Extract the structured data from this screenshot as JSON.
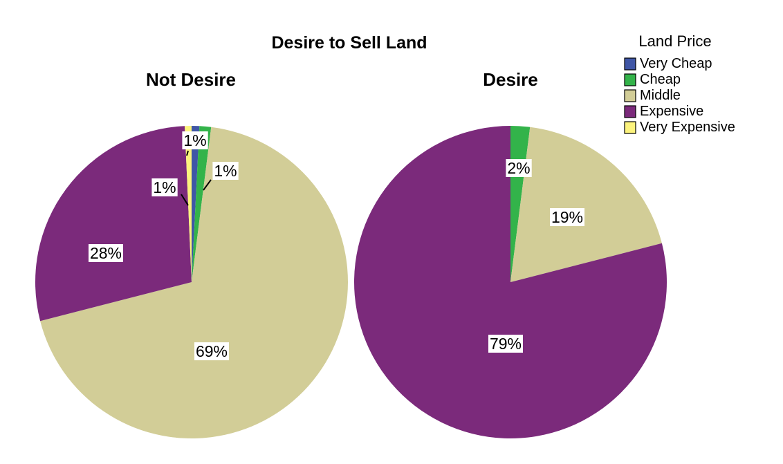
{
  "chart_data": {
    "type": "pie",
    "title": "Desire to Sell Land",
    "legend": {
      "title": "Land Price",
      "placement": "top-right",
      "entries": [
        {
          "label": "Very Cheap",
          "color": "#3f56a6"
        },
        {
          "label": "Cheap",
          "color": "#33b34a"
        },
        {
          "label": "Middle",
          "color": "#d2cd97"
        },
        {
          "label": "Expensive",
          "color": "#7b2a7b"
        },
        {
          "label": "Very Expensive",
          "color": "#fcf37d"
        }
      ]
    },
    "pies": [
      {
        "title": "Not Desire",
        "slices": [
          {
            "category": "Very Cheap",
            "value": 0.8,
            "label": "1%"
          },
          {
            "category": "Cheap",
            "value": 1.2,
            "label": "1%"
          },
          {
            "category": "Middle",
            "value": 69.0,
            "label": "69%"
          },
          {
            "category": "Expensive",
            "value": 28.3,
            "label": "28%"
          },
          {
            "category": "Very Expensive",
            "value": 0.7,
            "label": "1%"
          }
        ]
      },
      {
        "title": "Desire",
        "slices": [
          {
            "category": "Cheap",
            "value": 2.0,
            "label": "2%"
          },
          {
            "category": "Middle",
            "value": 19.0,
            "label": "19%"
          },
          {
            "category": "Expensive",
            "value": 79.0,
            "label": "79%"
          }
        ]
      }
    ]
  }
}
